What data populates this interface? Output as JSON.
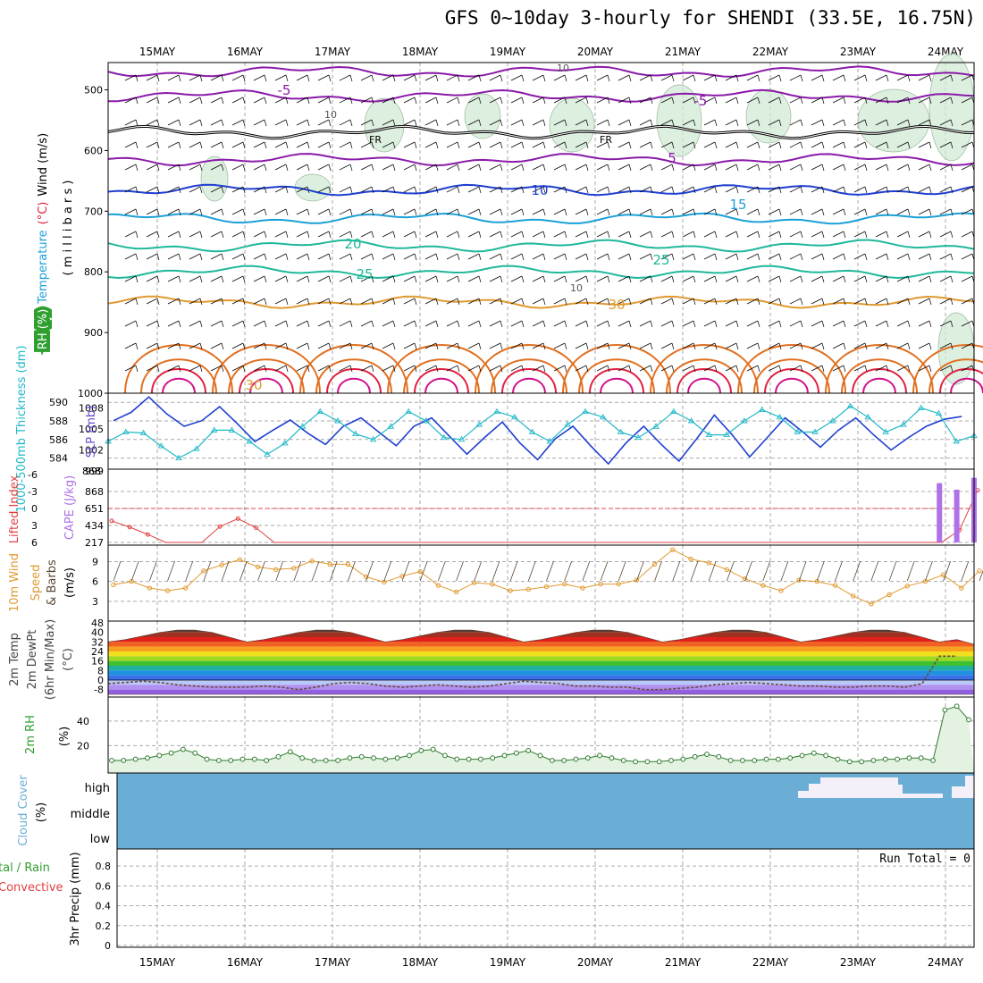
{
  "title": "GFS 0~10day 3-hourly for SHENDI (33.5E, 16.75N)",
  "colors": {
    "purple": "#8a1aa8",
    "black": "#000000",
    "blue": "#1f3fd0",
    "cyan": "#1aa0d8",
    "teal": "#1fb89a",
    "orange": "#e09a30",
    "dorange": "#e07020",
    "red": "#e02040",
    "magenta": "#d0108a",
    "slp": "#1f3fd0",
    "thick": "#20b8c8",
    "lifted": "#e04040",
    "cape": "#b070e8",
    "wind": "#e09a30",
    "temp": "#555555",
    "rh": "#2fa02f",
    "cloud": "#6aaed6",
    "cloudHigh": "#f4f0fa"
  },
  "chart_data": {
    "dates": [
      "15MAY",
      "16MAY",
      "17MAY",
      "18MAY",
      "19MAY",
      "20MAY",
      "21MAY",
      "22MAY",
      "23MAY",
      "24MAY"
    ],
    "panels": [
      {
        "id": "upper-air",
        "type": "line",
        "ylabel_parts": [
          "RH (%)",
          "Temperature",
          "(°C)",
          "Wind (m/s)"
        ],
        "ylabel2": "( m i l l i b a r s )",
        "yticks": [
          "500",
          "600",
          "700",
          "800",
          "900",
          "1000"
        ],
        "contours": [
          {
            "label": "-5",
            "color": "purple",
            "base": 470
          },
          {
            "label": "-5",
            "color": "purple",
            "base": 510
          },
          {
            "label": "FR",
            "color": "black",
            "base": 570
          },
          {
            "label": "5",
            "color": "purple",
            "base": 615
          },
          {
            "label": "10",
            "color": "blue",
            "base": 665
          },
          {
            "label": "15",
            "color": "cyan",
            "base": 712
          },
          {
            "label": "20",
            "color": "teal",
            "base": 757
          },
          {
            "label": "25",
            "color": "teal",
            "base": 800
          },
          {
            "label": "30",
            "color": "orange",
            "base": 850
          }
        ],
        "labels": [
          "-5",
          "-5",
          "FR",
          "FR",
          "5",
          "10",
          "15",
          "20",
          "25",
          "25",
          "30",
          "30",
          "10",
          "10",
          "10"
        ]
      },
      {
        "id": "thickness-slp",
        "type": "line",
        "ylabel_left": "1000-500mb Thickness (dm)",
        "ylabel_right": "SLP (mb)",
        "yticks_left": [
          "590",
          "588",
          "586",
          "584"
        ],
        "yticks_right": [
          "1008",
          "1005",
          "1002",
          "999"
        ],
        "slp": [
          1006.2,
          1007.4,
          1009.6,
          1007.2,
          1005.4,
          1006.2,
          1008.2,
          1005.8,
          1003.2,
          1004.8,
          1006.3,
          1004.4,
          1002.8,
          1005.4,
          1006.6,
          1004.6,
          1002.6,
          1005.4,
          1006.6,
          1004.0,
          1001.4,
          1003.8,
          1006.0,
          1003.0,
          1000.6,
          1003.6,
          1005.4,
          1002.6,
          1000.0,
          1003.0,
          1005.4,
          1002.8,
          1000.4,
          1003.6,
          1007.0,
          1004.2,
          1001.0,
          1003.8,
          1006.6,
          1004.6,
          1002.4,
          1004.8,
          1006.6,
          1004.2,
          1002.0,
          1003.8,
          1005.4,
          1006.4,
          1006.8
        ],
        "thickness": [
          585.8,
          586.8,
          586.7,
          585.3,
          584.0,
          585.0,
          587.0,
          587.0,
          585.8,
          584.4,
          585.6,
          587.4,
          589.0,
          588.0,
          586.6,
          586.0,
          587.4,
          589.0,
          588.0,
          586.2,
          586.0,
          587.6,
          589.0,
          588.4,
          586.8,
          585.8,
          587.6,
          589.0,
          588.4,
          586.8,
          586.2,
          587.4,
          589.0,
          588.0,
          586.5,
          586.5,
          588.0,
          589.2,
          588.4,
          586.8,
          586.8,
          588.0,
          589.6,
          588.4,
          586.8,
          587.6,
          589.4,
          588.8,
          585.8,
          586.4
        ],
        "cape_ticks": [
          "868",
          "651",
          "434",
          "217"
        ]
      },
      {
        "id": "lifted-cape",
        "type": "bar",
        "ylabel_left": "Lifted Index",
        "ylabel_right": "CAPE (J/kg)",
        "yticks_left": [
          "-6",
          "-3",
          "0",
          "3",
          "6"
        ],
        "yticks_right": [
          "868",
          "651",
          "434",
          "217"
        ],
        "lifted": [
          2.2,
          3.3,
          4.6,
          6.0,
          6.0,
          6.0,
          3.2,
          1.8,
          3.4,
          6.0,
          6.0,
          6.0,
          6.0,
          6.0,
          6.0,
          6.0,
          6.0,
          6.0,
          6.0,
          6.0,
          6.0,
          6.0,
          6.0,
          6.0,
          6.0,
          6.0,
          6.0,
          6.0,
          6.0,
          6.0,
          6.0,
          6.0,
          6.0,
          6.0,
          6.0,
          6.0,
          6.0,
          6.0,
          6.0,
          6.0,
          6.0,
          6.0,
          6.0,
          6.0,
          6.0,
          6.0,
          6.0,
          3.8,
          -3.2
        ],
        "cape": [
          0,
          0,
          0,
          0,
          0,
          0,
          0,
          0,
          0,
          0,
          0,
          0,
          0,
          0,
          0,
          0,
          0,
          0,
          0,
          0,
          0,
          0,
          0,
          0,
          0,
          0,
          0,
          0,
          0,
          0,
          0,
          0,
          0,
          0,
          0,
          0,
          0,
          0,
          0,
          0,
          0,
          0,
          0,
          0,
          0,
          0,
          0,
          0,
          720,
          640,
          785
        ]
      },
      {
        "id": "wind10m",
        "type": "line",
        "ylabel": "10m Wind Speed & Barbs (m/s)",
        "ylabel_parts": [
          "10m Wind",
          "Speed",
          "& Barbs",
          "(m/s)"
        ],
        "yticks": [
          "9",
          "6",
          "3"
        ],
        "values": [
          5.5,
          6.0,
          5.0,
          4.6,
          5.0,
          7.6,
          8.5,
          9.3,
          8.2,
          7.8,
          8.0,
          9.1,
          8.6,
          8.6,
          6.7,
          5.9,
          6.8,
          7.5,
          5.4,
          4.4,
          5.8,
          5.6,
          4.6,
          4.8,
          5.2,
          5.6,
          5.0,
          5.6,
          5.6,
          6.2,
          8.6,
          10.8,
          9.4,
          8.8,
          7.8,
          6.4,
          5.4,
          4.6,
          6.2,
          6.0,
          5.4,
          3.8,
          2.6,
          4.0,
          5.3,
          6.0,
          7.0,
          5.0,
          7.6
        ]
      },
      {
        "id": "temp2m",
        "type": "area",
        "ylabel_parts": [
          "2m Temp",
          "2m DewPt",
          "(6hr Min/Max)",
          "(°C)"
        ],
        "yticks": [
          "48",
          "40",
          "32",
          "24",
          "16",
          "8",
          "0",
          "-8"
        ],
        "temp": [
          32,
          34,
          37,
          40,
          42,
          42,
          40,
          36,
          32,
          34,
          37,
          40,
          42,
          42,
          40,
          36,
          32,
          34,
          37,
          40,
          42,
          42,
          40,
          36,
          32,
          34,
          37,
          40,
          42,
          42,
          40,
          36,
          32,
          34,
          37,
          40,
          42,
          42,
          40,
          36,
          32,
          34,
          37,
          40,
          42,
          42,
          40,
          36,
          32,
          34,
          30
        ],
        "dewpt": [
          -3,
          -2,
          -1,
          -2,
          -4,
          -5,
          -6,
          -6,
          -6,
          -5,
          -6,
          -8,
          -6,
          -3,
          -2,
          -3,
          -5,
          -6,
          -5,
          -4,
          -5,
          -6,
          -5,
          -3,
          -1,
          -2,
          -3,
          -5,
          -5,
          -6,
          -6,
          -8,
          -8,
          -7,
          -6,
          -4,
          -3,
          -2,
          -3,
          -4,
          -5,
          -5,
          -6,
          -6,
          -5,
          -5,
          -6,
          -3,
          20,
          20
        ]
      },
      {
        "id": "rh2m",
        "type": "area",
        "ylabel": "2m RH",
        "yunit": "(%)",
        "yticks": [
          "40",
          "20"
        ],
        "values": [
          8,
          8,
          9,
          10,
          12,
          14,
          17,
          14,
          9,
          8,
          8,
          9,
          9,
          8,
          11,
          15,
          10,
          8,
          8,
          8,
          10,
          11,
          10,
          9,
          10,
          12,
          16,
          17,
          12,
          9,
          9,
          9,
          10,
          12,
          14,
          16,
          12,
          8,
          8,
          9,
          10,
          12,
          10,
          8,
          7,
          7,
          7,
          8,
          9,
          11,
          13,
          11,
          8,
          8,
          8,
          9,
          9,
          10,
          12,
          14,
          12,
          9,
          7,
          7,
          8,
          9,
          9,
          10,
          10,
          8,
          49,
          52,
          41
        ]
      },
      {
        "id": "cloud",
        "type": "area",
        "ylabel": "Cloud Cover",
        "yunit": "(%)",
        "ylevels": [
          "high",
          "middle",
          "low"
        ]
      },
      {
        "id": "precip",
        "type": "bar",
        "ylabel": "3hr Precip (mm)",
        "ylabel_left_a": "tal / Rain",
        "ylabel_left_b": "Convective",
        "yticks": [
          "0.8",
          "0.6",
          "0.4",
          "0.2",
          "0"
        ],
        "run_total": "Run Total = 0",
        "values": []
      }
    ]
  }
}
